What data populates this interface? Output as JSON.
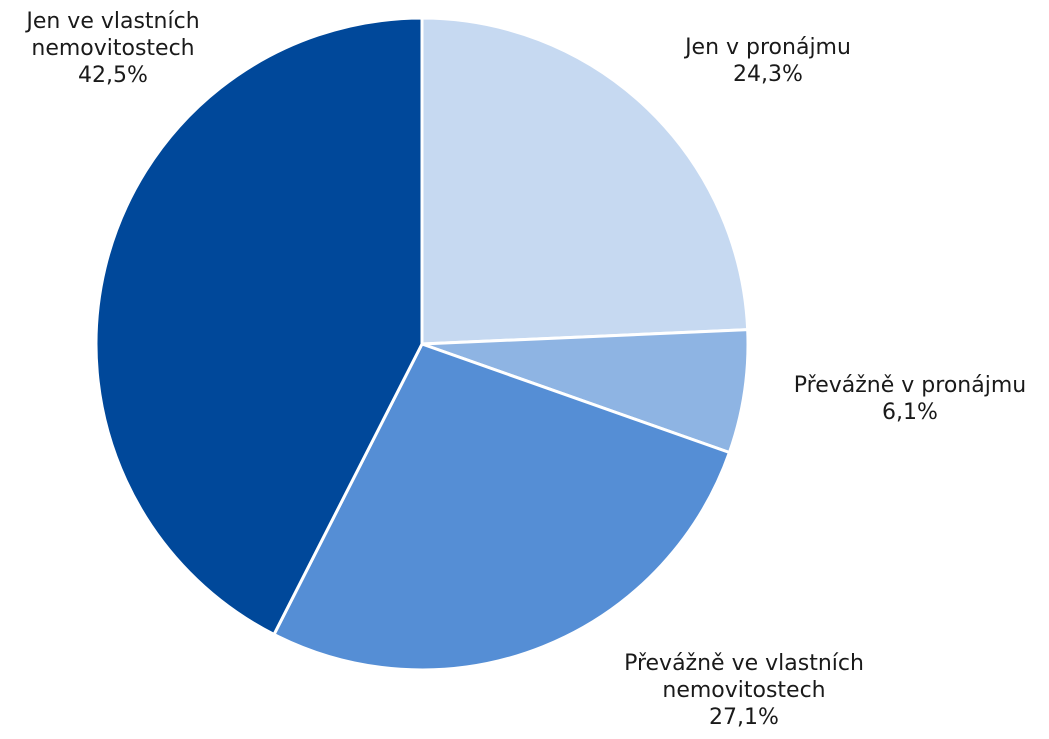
{
  "chart_data": {
    "type": "pie",
    "title": "",
    "legend": "none",
    "slices": [
      {
        "label_lines": [
          "Jen v pronájmu"
        ],
        "value": 24.3,
        "value_label": "24,3%",
        "color": "#c6d9f1"
      },
      {
        "label_lines": [
          "Převážně v pronájmu"
        ],
        "value": 6.1,
        "value_label": "6,1%",
        "color": "#8eb4e3"
      },
      {
        "label_lines": [
          "Převážně ve vlastních",
          "nemovitostech"
        ],
        "value": 27.1,
        "value_label": "27,1%",
        "color": "#558ed5"
      },
      {
        "label_lines": [
          "Jen ve vlastních",
          "nemovitostech"
        ],
        "value": 42.5,
        "value_label": "42,5%",
        "color": "#00489a"
      }
    ]
  }
}
